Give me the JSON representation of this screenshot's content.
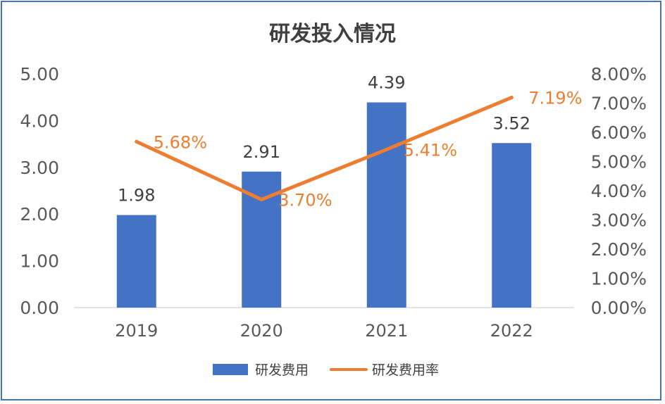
{
  "chart_data": {
    "type": "bar",
    "title": "研发投入情况",
    "categories": [
      "2019",
      "2020",
      "2021",
      "2022"
    ],
    "series": [
      {
        "name": "研发费用",
        "type": "bar",
        "axis": "left",
        "values": [
          1.98,
          2.91,
          4.39,
          3.52
        ],
        "labels": [
          "1.98",
          "2.91",
          "4.39",
          "3.52"
        ],
        "color": "#4472c4"
      },
      {
        "name": "研发费用率",
        "type": "line",
        "axis": "right",
        "values": [
          5.68,
          3.7,
          5.41,
          7.19
        ],
        "labels": [
          "5.68%",
          "3.70%",
          "5.41%",
          "7.19%"
        ],
        "color": "#ed7d31"
      }
    ],
    "y_left": {
      "ylim": [
        0,
        5
      ],
      "ticks": [
        "0.00",
        "1.00",
        "2.00",
        "3.00",
        "4.00",
        "5.00"
      ]
    },
    "y_right": {
      "ylim": [
        0,
        8
      ],
      "ticks": [
        "0.00%",
        "1.00%",
        "2.00%",
        "3.00%",
        "4.00%",
        "5.00%",
        "6.00%",
        "7.00%",
        "8.00%"
      ]
    },
    "legend_position": "bottom",
    "grid": false
  }
}
